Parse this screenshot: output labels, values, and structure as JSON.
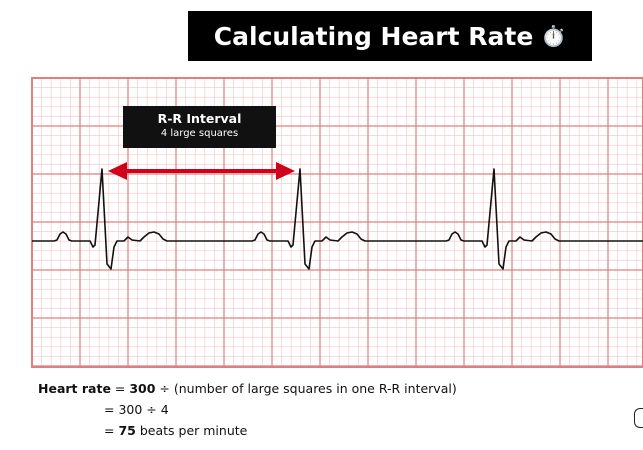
{
  "title": {
    "text": "Calculating Heart Rate",
    "emoji": "⏱️",
    "icon": "stopwatch-icon"
  },
  "rr_label": {
    "title": "R-R Interval",
    "subtitle": "4 large squares"
  },
  "formula": {
    "line1_prefix": "Heart rate",
    "line1_eq": " = ",
    "line1_value": "300",
    "line1_rest": " ÷ (number of large squares in one R-R interval)",
    "line2_eq": "= ",
    "line2_text": "300 ÷ 4",
    "line3_eq": "= ",
    "line3_value": "75",
    "line3_rest": " beats per minute"
  },
  "colors": {
    "title_bg": "#000000",
    "grid_major": "#e07f7f",
    "grid_minor": "#f5c5c5",
    "arrow": "#d0021b",
    "trace": "#111111"
  }
}
